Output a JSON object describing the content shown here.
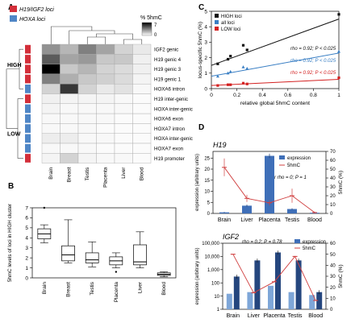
{
  "panels": {
    "A": "A",
    "B": "B",
    "C": "C",
    "D": "D"
  },
  "colors": {
    "h19_igf2": "#d32f3a",
    "hoxa": "#4f86c6",
    "high": "#111111",
    "all": "#3a7fc4",
    "low": "#d32020",
    "expression": "#3f6fb8",
    "fivehmc": "#d04040"
  },
  "chart_data": [
    {
      "type": "heatmap",
      "panel": "A",
      "legend_groups": [
        {
          "label": "H19/IGF2 loci",
          "color": "#d32f3a"
        },
        {
          "label": "HOXA loci",
          "color": "#4f86c6"
        }
      ],
      "colorbar": {
        "title": "% 5hmC",
        "max_label": "7",
        "min_label": "0",
        "range": [
          0,
          7
        ]
      },
      "cluster_labels": [
        "HIGH",
        "LOW"
      ],
      "rows": [
        "IGF2 genic",
        "H19 genic 4",
        "H19 genic 3",
        "H19 genic 1",
        "HOXA6 intron",
        "H19 inter-genic",
        "HOXA inter-genic",
        "HOXA6 exon",
        "HOXA7 intron",
        "HOXA inter-genic",
        "HOXA7 exon",
        "H19 promoter"
      ],
      "row_groups": [
        "h19",
        "h19",
        "h19",
        "h19",
        "hoxa",
        "h19",
        "hoxa",
        "hoxa",
        "hoxa",
        "hoxa",
        "hoxa",
        "h19"
      ],
      "columns": [
        "Brain",
        "Breast",
        "Testis",
        "Placenta",
        "Liver",
        "Blood"
      ],
      "values": [
        [
          3.0,
          2.0,
          3.5,
          2.5,
          1.2,
          0.6
        ],
        [
          4.5,
          2.5,
          2.8,
          1.5,
          1.5,
          0.4
        ],
        [
          7.0,
          1.5,
          2.0,
          1.2,
          1.0,
          0.4
        ],
        [
          3.5,
          2.2,
          1.5,
          1.3,
          1.0,
          0.3
        ],
        [
          1.2,
          5.5,
          1.2,
          0.6,
          0.8,
          0.2
        ],
        [
          0.4,
          0.3,
          0.3,
          0.3,
          0.2,
          0.1
        ],
        [
          0.3,
          0.2,
          0.2,
          0.2,
          0.2,
          0.1
        ],
        [
          0.2,
          0.2,
          0.2,
          0.2,
          0.1,
          0.1
        ],
        [
          0.2,
          0.2,
          0.2,
          0.1,
          0.1,
          0.1
        ],
        [
          0.5,
          0.5,
          0.2,
          0.2,
          0.1,
          0.1
        ],
        [
          0.2,
          0.2,
          0.2,
          0.1,
          0.1,
          0.1
        ],
        [
          0.3,
          1.2,
          0.3,
          0.2,
          0.2,
          0.1
        ]
      ]
    },
    {
      "type": "box",
      "panel": "B",
      "ylabel": "5hmC levels of loci in HIGH cluster",
      "ylim": [
        0,
        7
      ],
      "yticks": [
        0,
        1,
        2,
        3,
        4,
        5,
        6,
        7
      ],
      "categories": [
        "Brain",
        "Breast",
        "Testis",
        "Placenta",
        "Liver",
        "Blood"
      ],
      "boxes": [
        {
          "min": 3.5,
          "q1": 3.9,
          "median": 4.4,
          "q3": 4.9,
          "max": 5.3,
          "outliers": [
            7.0
          ]
        },
        {
          "min": 1.5,
          "q1": 1.7,
          "median": 2.3,
          "q3": 3.2,
          "max": 5.8,
          "outliers": []
        },
        {
          "min": 1.1,
          "q1": 1.5,
          "median": 1.8,
          "q3": 2.5,
          "max": 3.6,
          "outliers": []
        },
        {
          "min": 1.0,
          "q1": 1.3,
          "median": 1.7,
          "q3": 2.1,
          "max": 2.5,
          "outliers": [
            0.6
          ]
        },
        {
          "min": 1.0,
          "q1": 1.3,
          "median": 1.6,
          "q3": 3.3,
          "max": 4.6,
          "outliers": []
        },
        {
          "min": 0.1,
          "q1": 0.25,
          "median": 0.35,
          "q3": 0.5,
          "max": 0.6,
          "outliers": []
        }
      ]
    },
    {
      "type": "scatter",
      "panel": "C",
      "xlabel": "relative global 5hmC content",
      "ylabel": "locus-specific 5hmC (%)",
      "xlim": [
        0,
        1
      ],
      "ylim": [
        0,
        5
      ],
      "xticks": [
        0,
        0.2,
        0.4,
        0.6,
        0.8,
        1.0
      ],
      "yticks": [
        0,
        1,
        2,
        3,
        4,
        5
      ],
      "legend": [
        "HIGH loci",
        "all loci",
        "LOW loci"
      ],
      "series": [
        {
          "name": "HIGH loci",
          "color": "#111111",
          "x": [
            0.05,
            0.13,
            0.15,
            0.25,
            0.28,
            1.0
          ],
          "y": [
            1.6,
            1.9,
            2.1,
            2.8,
            2.5,
            4.8
          ],
          "fit": [
            1.5,
            4.5
          ],
          "annotation": "rho = 0.92; P < 0.025"
        },
        {
          "name": "all loci",
          "color": "#3a7fc4",
          "x": [
            0.05,
            0.13,
            0.15,
            0.25,
            0.28,
            1.0
          ],
          "y": [
            0.8,
            1.0,
            1.1,
            1.4,
            1.3,
            2.4
          ],
          "fit": [
            0.8,
            2.3
          ],
          "annotation": "rho = 0.92; P < 0.025"
        },
        {
          "name": "LOW loci",
          "color": "#d32020",
          "x": [
            0.05,
            0.13,
            0.15,
            0.25,
            0.28,
            1.0
          ],
          "y": [
            0.2,
            0.25,
            0.25,
            0.35,
            0.3,
            0.7
          ],
          "fit": [
            0.2,
            0.6
          ],
          "annotation": "rho = 0.92; P < 0.025"
        }
      ]
    },
    {
      "type": "bar",
      "panel": "D-H19",
      "title": "H19",
      "ylabel_left": "expression (arbitrary units)",
      "ylabel_right": "5hmC (%)",
      "ylim": [
        0,
        28
      ],
      "yticks": [
        0,
        5,
        10,
        15,
        20,
        25
      ],
      "y2lim": [
        0,
        70
      ],
      "y2ticks": [
        0,
        10,
        20,
        30,
        40,
        50,
        60,
        70
      ],
      "categories": [
        "Brain",
        "Liver",
        "Placenta",
        "Testis",
        "Blood"
      ],
      "legend": [
        "expression",
        "5hmC"
      ],
      "annotation": "r rho = 0; P = 1",
      "series": [
        {
          "name": "expression",
          "values": [
            0.5,
            3.5,
            26.0,
            2.0,
            0.3
          ],
          "errors": [
            0.2,
            0.5,
            1.0,
            0.3,
            0.1
          ]
        },
        {
          "name": "5hmC",
          "values": [
            52,
            17,
            12,
            20,
            1
          ],
          "errors": [
            10,
            4,
            3,
            8,
            1
          ]
        }
      ]
    },
    {
      "type": "bar",
      "panel": "D-IGF2",
      "title": "IGF2",
      "ylabel_left": "expression (arbitrary units)",
      "ylabel_right": "5hmC (%)",
      "yscale": "log",
      "ylim": [
        1,
        100000
      ],
      "yticks": [
        "1",
        "10",
        "100",
        "1,000",
        "10,000",
        "100,000"
      ],
      "y2lim": [
        0,
        60
      ],
      "y2ticks": [
        0,
        10,
        20,
        30,
        40,
        50,
        60
      ],
      "categories": [
        "Brain",
        "Liver",
        "Placenta",
        "Testis",
        "Blood"
      ],
      "legend": [
        "expression",
        "5hmC"
      ],
      "annotation": "rho = 0.2; P = 0.78",
      "series": [
        {
          "name": "expression (light)",
          "values": [
            15,
            20,
            60,
            20,
            12
          ]
        },
        {
          "name": "expression (dark)",
          "values": [
            300,
            5000,
            20000,
            5000,
            20
          ]
        },
        {
          "name": "5hmC",
          "values": [
            50,
            15,
            25,
            48,
            8
          ]
        }
      ]
    }
  ]
}
